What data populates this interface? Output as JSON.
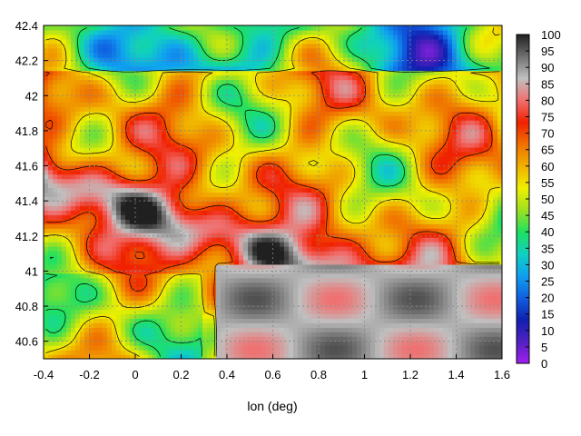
{
  "chart_data": {
    "type": "heatmap",
    "title": "",
    "xlabel": "lon (deg)",
    "ylabel": "",
    "xlim": [
      -0.4,
      1.6
    ],
    "ylim": [
      40.5,
      42.4
    ],
    "x_ticks": [
      "-0.4",
      "-0.2",
      "0",
      "0.2",
      "0.4",
      "0.6",
      "0.8",
      "1",
      "1.2",
      "1.4",
      "1.6"
    ],
    "y_ticks": [
      "40.6",
      "40.8",
      "41",
      "41.2",
      "41.4",
      "41.6",
      "41.8",
      "42",
      "42.2",
      "42.4"
    ],
    "colorbar": {
      "min": 0,
      "max": 100,
      "ticks": [
        "0",
        "5",
        "10",
        "15",
        "20",
        "25",
        "30",
        "35",
        "40",
        "45",
        "50",
        "55",
        "60",
        "65",
        "70",
        "75",
        "80",
        "85",
        "90",
        "95",
        "100"
      ],
      "palette": [
        "#a020f0",
        "#5020c0",
        "#1020b0",
        "#1060e0",
        "#10a0f0",
        "#10d0c0",
        "#20e060",
        "#a0e020",
        "#f0f000",
        "#f0b000",
        "#f07000",
        "#f02000",
        "#f07070",
        "#c0c0c0",
        "#707070",
        "#202020"
      ]
    },
    "grid": true,
    "contours": true
  }
}
